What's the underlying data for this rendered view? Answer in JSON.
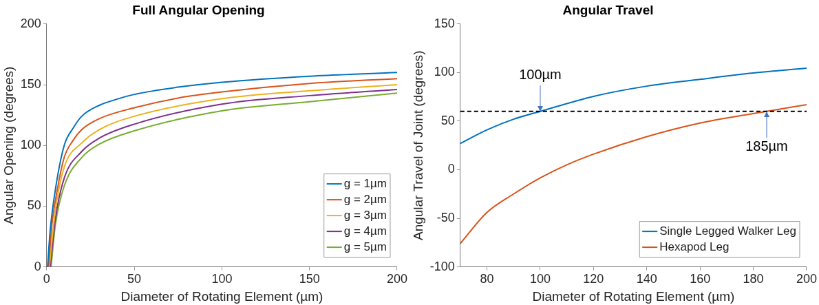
{
  "chart_data": [
    {
      "type": "line",
      "title": "Full Angular Opening",
      "xlabel": "Diameter of Rotating Element (µm)",
      "ylabel": "Angular Opening (degrees)",
      "xlim": [
        0,
        200
      ],
      "xticks": [
        0,
        50,
        100,
        150,
        200
      ],
      "ylim": [
        0,
        200
      ],
      "yticks": [
        0,
        50,
        100,
        150,
        200
      ],
      "grid": false,
      "legend": "bottom right",
      "marker": "none",
      "line_style": "solid",
      "series": [
        {
          "name": "g = 1µm",
          "color": "#0072bd",
          "x": [
            0.5,
            2,
            5,
            10,
            15,
            20,
            30,
            40,
            50,
            75,
            100,
            150,
            200
          ],
          "values": [
            0,
            30,
            64,
            100,
            114,
            124,
            133,
            138,
            142,
            148,
            152,
            157,
            160
          ]
        },
        {
          "name": "g = 2µm",
          "color": "#d95319",
          "x": [
            1,
            3,
            5,
            10,
            15,
            20,
            30,
            50,
            75,
            100,
            150,
            200
          ],
          "values": [
            0,
            35,
            55,
            90,
            104,
            113,
            122,
            131,
            139,
            144,
            151,
            155
          ]
        },
        {
          "name": "g = 3µm",
          "color": "#edb120",
          "x": [
            1.5,
            5,
            10,
            20,
            30,
            50,
            100,
            150,
            200
          ],
          "values": [
            0,
            47,
            82,
            102,
            113,
            124,
            138.5,
            145,
            150
          ]
        },
        {
          "name": "g = 4µm",
          "color": "#7e2f8e",
          "x": [
            2,
            5,
            10,
            20,
            30,
            50,
            100,
            150,
            200
          ],
          "values": [
            0,
            40,
            73,
            95,
            106,
            117.5,
            134,
            141,
            146
          ]
        },
        {
          "name": "g = 5µm",
          "color": "#77ac30",
          "x": [
            2.5,
            5,
            10,
            20,
            30,
            50,
            100,
            150,
            200
          ],
          "values": [
            0,
            35,
            66.5,
            90,
            101,
            112,
            128.5,
            136,
            143
          ]
        }
      ]
    },
    {
      "type": "line",
      "title": "Angular Travel",
      "xlabel": "Diameter of Rotating Element (µm)",
      "ylabel": "Angular Travel of Joint (degrees)",
      "xlim": [
        70,
        200
      ],
      "xticks": [
        80,
        100,
        120,
        140,
        160,
        180,
        200
      ],
      "ylim": [
        -100,
        150
      ],
      "yticks": [
        -100,
        -50,
        0,
        50,
        100,
        150
      ],
      "grid": false,
      "legend": "bottom right",
      "marker": "none",
      "line_style": "solid",
      "ref_lines": [
        {
          "axis": "y",
          "value": 60,
          "color": "#000000",
          "line_style": "dashed"
        }
      ],
      "annotations": [
        {
          "text": "100µm",
          "x": 100,
          "y": 60
        },
        {
          "text": "185µm",
          "x": 185,
          "y": 60
        }
      ],
      "series": [
        {
          "name": "Single Legged Walker Leg",
          "color": "#0072bd",
          "x": [
            70,
            80,
            90,
            100,
            120,
            140,
            160,
            180,
            200
          ],
          "values": [
            27,
            41,
            52,
            60,
            75.5,
            86,
            93,
            99.5,
            104.5
          ]
        },
        {
          "name": "Hexapod Leg",
          "color": "#d95319",
          "x": [
            70,
            80,
            90,
            100,
            110,
            120,
            140,
            160,
            185,
            200
          ],
          "values": [
            -76,
            -44,
            -25,
            -8.5,
            5,
            16,
            34,
            48,
            60,
            67
          ]
        }
      ]
    }
  ]
}
